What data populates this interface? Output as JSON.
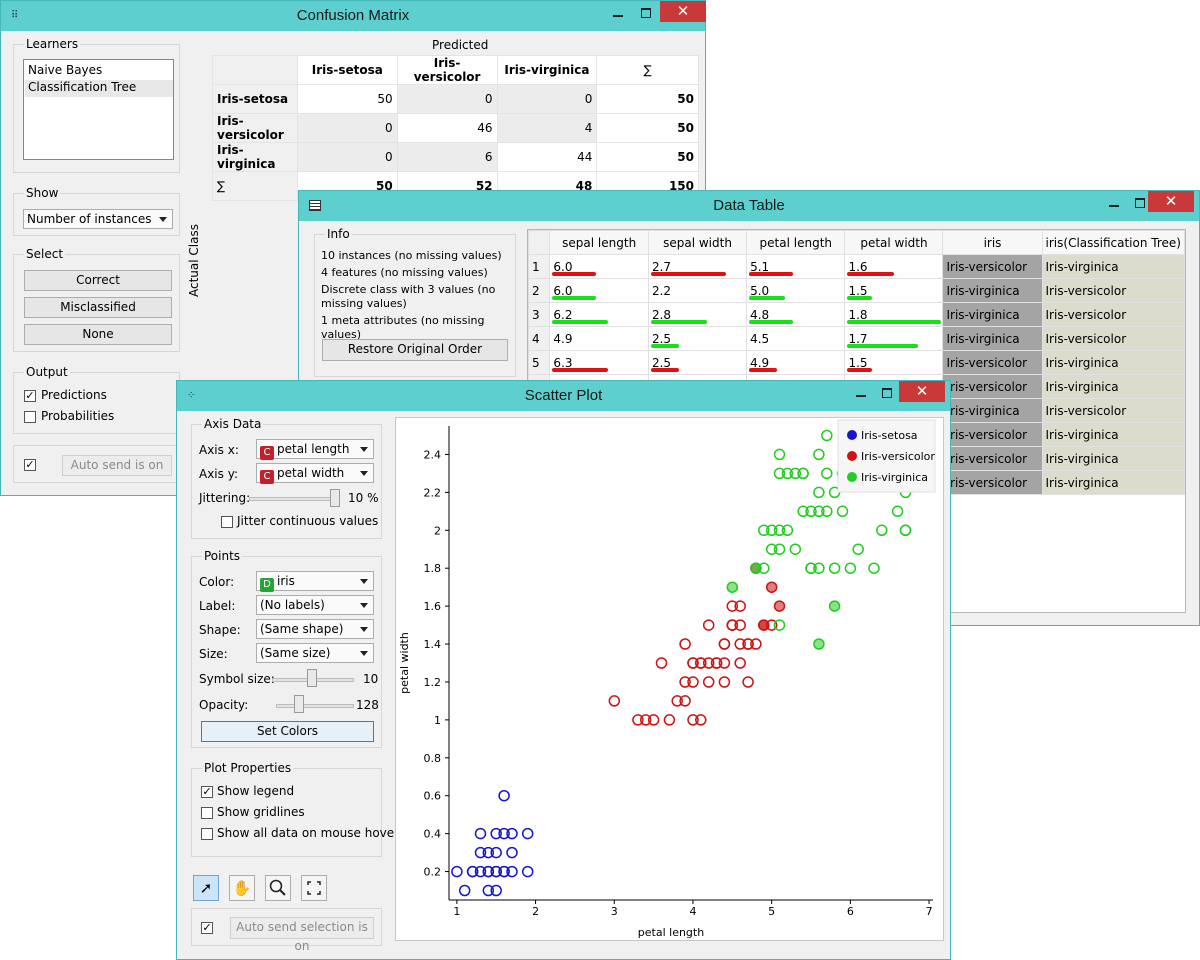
{
  "confusion": {
    "title": "Confusion Matrix",
    "learners_label": "Learners",
    "learners": [
      "Naive Bayes",
      "Classification Tree"
    ],
    "show_label": "Show",
    "show_value": "Number of instances",
    "select_label": "Select",
    "buttons": [
      "Correct",
      "Misclassified",
      "None"
    ],
    "output_label": "Output",
    "predictions": "Predictions",
    "probabilities": "Probabilities",
    "auto_send": "Auto send is on",
    "predicted": "Predicted",
    "actual_class": "Actual Class",
    "columns": [
      "Iris-setosa",
      "Iris-versicolor",
      "Iris-virginica",
      "∑"
    ],
    "rows": [
      {
        "label": "Iris-setosa",
        "cells": [
          "50",
          "0",
          "0",
          "50"
        ]
      },
      {
        "label": "Iris-versicolor",
        "cells": [
          "0",
          "46",
          "4",
          "50"
        ]
      },
      {
        "label": "Iris-virginica",
        "cells": [
          "0",
          "6",
          "44",
          "50"
        ]
      },
      {
        "label": "∑",
        "cells": [
          "50",
          "52",
          "48",
          "150"
        ]
      }
    ]
  },
  "datatable": {
    "title": "Data Table",
    "info_label": "Info",
    "info_lines": [
      "10 instances (no missing values)",
      "4 features (no missing values)",
      "Discrete class with 3 values (no missing values)",
      "1 meta attributes (no missing values)"
    ],
    "restore": "Restore Original Order",
    "columns": [
      "sepal length",
      "sepal width",
      "petal length",
      "petal width",
      "iris",
      "iris(Classification Tree)"
    ],
    "rows": [
      {
        "n": "1",
        "v": [
          "6.0",
          "2.7",
          "5.1",
          "1.6"
        ],
        "iris": "Iris-versicolor",
        "pred": "Iris-virginica",
        "bars": [
          {
            "f": 0.47,
            "c": "red"
          },
          {
            "f": 0.8,
            "c": "red"
          },
          {
            "f": 0.47,
            "c": "red"
          },
          {
            "f": 0.5,
            "c": "red"
          }
        ]
      },
      {
        "n": "2",
        "v": [
          "6.0",
          "2.2",
          "5.0",
          "1.5"
        ],
        "iris": "Iris-virginica",
        "pred": "Iris-versicolor",
        "bars": [
          {
            "f": 0.47,
            "c": "green"
          },
          {
            "f": 0,
            "c": "green"
          },
          {
            "f": 0.38,
            "c": "green"
          },
          {
            "f": 0.27,
            "c": "green"
          }
        ]
      },
      {
        "n": "3",
        "v": [
          "6.2",
          "2.8",
          "4.8",
          "1.8"
        ],
        "iris": "Iris-virginica",
        "pred": "Iris-versicolor",
        "bars": [
          {
            "f": 0.6,
            "c": "green"
          },
          {
            "f": 0.6,
            "c": "green"
          },
          {
            "f": 0.47,
            "c": "green"
          },
          {
            "f": 1.0,
            "c": "green"
          }
        ]
      },
      {
        "n": "4",
        "v": [
          "4.9",
          "2.5",
          "4.5",
          "1.7"
        ],
        "iris": "Iris-virginica",
        "pred": "Iris-versicolor",
        "bars": [
          {
            "f": 0,
            "c": "green"
          },
          {
            "f": 0.3,
            "c": "green"
          },
          {
            "f": 0,
            "c": "green"
          },
          {
            "f": 0.75,
            "c": "green"
          }
        ]
      },
      {
        "n": "5",
        "v": [
          "6.3",
          "2.5",
          "4.9",
          "1.5"
        ],
        "iris": "Iris-versicolor",
        "pred": "Iris-virginica",
        "bars": [
          {
            "f": 0.6,
            "c": "red"
          },
          {
            "f": 0.3,
            "c": "red"
          },
          {
            "f": 0.3,
            "c": "red"
          },
          {
            "f": 0.27,
            "c": "red"
          }
        ]
      },
      {
        "n": "",
        "v": [
          "",
          "",
          "",
          ""
        ],
        "iris": "Iris-versicolor",
        "pred": "Iris-virginica",
        "bars": []
      },
      {
        "n": "",
        "v": [
          "",
          "",
          "",
          ""
        ],
        "iris": "Iris-virginica",
        "pred": "Iris-versicolor",
        "bars": []
      },
      {
        "n": "",
        "v": [
          "",
          "",
          "",
          ""
        ],
        "iris": "Iris-versicolor",
        "pred": "Iris-virginica",
        "bars": []
      },
      {
        "n": "",
        "v": [
          "",
          "",
          "",
          ""
        ],
        "iris": "Iris-versicolor",
        "pred": "Iris-virginica",
        "bars": []
      },
      {
        "n": "",
        "v": [
          "",
          "",
          "",
          ""
        ],
        "iris": "Iris-versicolor",
        "pred": "Iris-virginica",
        "bars": []
      }
    ]
  },
  "scatter": {
    "title": "Scatter Plot",
    "axis_data_label": "Axis Data",
    "axis_x_label": "Axis x:",
    "axis_x_value": "petal length",
    "axis_y_label": "Axis y:",
    "axis_y_value": "petal width",
    "jittering_label": "Jittering:",
    "jittering_value": "10 %",
    "jitter_continuous": "Jitter continuous values",
    "points_label": "Points",
    "color_label": "Color:",
    "color_value": "iris",
    "label_label": "Label:",
    "label_value": "(No labels)",
    "shape_label": "Shape:",
    "shape_value": "(Same shape)",
    "size_label": "Size:",
    "size_value": "(Same size)",
    "symbol_size_label": "Symbol size:",
    "symbol_size_value": "10",
    "opacity_label": "Opacity:",
    "opacity_value": "128",
    "set_colors": "Set Colors",
    "plot_props_label": "Plot Properties",
    "show_legend": "Show legend",
    "show_gridlines": "Show gridlines",
    "show_all_data": "Show all data on mouse hover",
    "auto_send_selection": "Auto send selection is on",
    "colors": {
      "setosa": "#1616cc",
      "versicolor": "#cc1414",
      "virginica": "#22cc22",
      "accent": "#5ccfce"
    }
  },
  "chart_data": {
    "type": "scatter",
    "xlabel": "petal length",
    "ylabel": "petal width",
    "xlim": [
      0.9,
      7.05
    ],
    "ylim": [
      0.05,
      2.55
    ],
    "xticks": [
      1,
      2,
      3,
      4,
      5,
      6,
      7
    ],
    "yticks": [
      0.2,
      0.4,
      0.6,
      0.8,
      1,
      1.2,
      1.4,
      1.6,
      1.8,
      2,
      2.2,
      2.4
    ],
    "ytick_labels": [
      "0.2",
      "0.4",
      "0.6",
      "0.8",
      "1",
      "1.2",
      "1.4",
      "1.6",
      "1.8",
      "2",
      "2.2",
      "2.4"
    ],
    "legend": [
      "Iris-setosa",
      "Iris-versicolor",
      "Iris-virginica"
    ],
    "legend_position": "top-right",
    "grid": false,
    "series": [
      {
        "name": "Iris-setosa",
        "color": "#1616cc",
        "points": [
          [
            1.4,
            0.2
          ],
          [
            1.3,
            0.2
          ],
          [
            1.5,
            0.2
          ],
          [
            1.7,
            0.4
          ],
          [
            1.4,
            0.3
          ],
          [
            1.5,
            0.1
          ],
          [
            1.6,
            0.2
          ],
          [
            1.1,
            0.1
          ],
          [
            1.2,
            0.2
          ],
          [
            1.5,
            0.4
          ],
          [
            1.3,
            0.4
          ],
          [
            1.7,
            0.3
          ],
          [
            1.0,
            0.2
          ],
          [
            1.9,
            0.2
          ],
          [
            1.6,
            0.4
          ],
          [
            1.9,
            0.4
          ],
          [
            1.6,
            0.6
          ],
          [
            1.4,
            0.1
          ],
          [
            1.2,
            0.2
          ],
          [
            1.3,
            0.3
          ],
          [
            1.5,
            0.3
          ],
          [
            1.6,
            0.2
          ],
          [
            1.4,
            0.2
          ],
          [
            1.7,
            0.2
          ],
          [
            1.5,
            0.2
          ]
        ]
      },
      {
        "name": "Iris-versicolor",
        "color": "#cc1414",
        "points": [
          [
            4.7,
            1.4
          ],
          [
            4.5,
            1.5
          ],
          [
            4.9,
            1.5
          ],
          [
            4.0,
            1.3
          ],
          [
            4.6,
            1.5
          ],
          [
            3.3,
            1.0
          ],
          [
            4.6,
            1.3
          ],
          [
            3.9,
            1.4
          ],
          [
            3.5,
            1.0
          ],
          [
            4.2,
            1.5
          ],
          [
            4.0,
            1.0
          ],
          [
            4.7,
            1.4
          ],
          [
            3.6,
            1.3
          ],
          [
            4.4,
            1.4
          ],
          [
            4.1,
            1.0
          ],
          [
            4.5,
            1.5
          ],
          [
            3.9,
            1.1
          ],
          [
            4.8,
            1.8
          ],
          [
            4.0,
            1.3
          ],
          [
            4.9,
            1.5
          ],
          [
            4.7,
            1.2
          ],
          [
            4.3,
            1.3
          ],
          [
            4.4,
            1.4
          ],
          [
            4.8,
            1.4
          ],
          [
            5.0,
            1.7
          ],
          [
            4.5,
            1.5
          ],
          [
            3.8,
            1.1
          ],
          [
            3.7,
            1.0
          ],
          [
            3.9,
            1.2
          ],
          [
            5.1,
            1.6
          ],
          [
            4.5,
            1.6
          ],
          [
            4.4,
            1.3
          ],
          [
            4.1,
            1.3
          ],
          [
            4.0,
            1.2
          ],
          [
            4.4,
            1.2
          ],
          [
            4.6,
            1.4
          ],
          [
            3.0,
            1.1
          ],
          [
            4.2,
            1.3
          ],
          [
            4.3,
            1.3
          ],
          [
            3.4,
            1.0
          ],
          [
            4.6,
            1.6
          ],
          [
            5.0,
            1.5
          ],
          [
            4.2,
            1.2
          ],
          [
            4.1,
            1.3
          ]
        ]
      },
      {
        "name": "Iris-virginica",
        "color": "#22cc22",
        "points": [
          [
            6.0,
            2.5
          ],
          [
            5.1,
            1.9
          ],
          [
            5.9,
            2.1
          ],
          [
            5.6,
            1.8
          ],
          [
            5.8,
            2.2
          ],
          [
            6.6,
            2.1
          ],
          [
            6.3,
            1.8
          ],
          [
            5.8,
            1.8
          ],
          [
            6.1,
            2.5
          ],
          [
            5.1,
            2.0
          ],
          [
            5.3,
            1.9
          ],
          [
            5.5,
            2.1
          ],
          [
            5.0,
            2.0
          ],
          [
            5.1,
            2.4
          ],
          [
            5.3,
            2.3
          ],
          [
            5.5,
            1.8
          ],
          [
            6.7,
            2.2
          ],
          [
            6.9,
            2.3
          ],
          [
            5.7,
            2.3
          ],
          [
            4.9,
            2.0
          ],
          [
            6.7,
            2.0
          ],
          [
            4.9,
            1.8
          ],
          [
            5.7,
            2.1
          ],
          [
            6.0,
            1.8
          ],
          [
            4.8,
            1.8
          ],
          [
            5.6,
            2.1
          ],
          [
            5.8,
            1.6
          ],
          [
            6.1,
            1.9
          ],
          [
            6.4,
            2.0
          ],
          [
            5.6,
            2.2
          ],
          [
            5.1,
            1.5
          ],
          [
            6.1,
            2.3
          ],
          [
            5.6,
            2.4
          ],
          [
            5.5,
            1.8
          ],
          [
            5.4,
            2.1
          ],
          [
            5.2,
            2.3
          ],
          [
            5.4,
            2.3
          ],
          [
            5.1,
            2.3
          ],
          [
            5.9,
            2.3
          ],
          [
            5.7,
            2.5
          ],
          [
            5.2,
            2.0
          ],
          [
            5.0,
            1.9
          ],
          [
            5.4,
            2.3
          ],
          [
            6.7,
            2.0
          ],
          [
            5.6,
            1.4
          ],
          [
            4.5,
            1.7
          ],
          [
            6.3,
            2.4
          ],
          [
            6.1,
            2.4
          ]
        ]
      }
    ]
  }
}
